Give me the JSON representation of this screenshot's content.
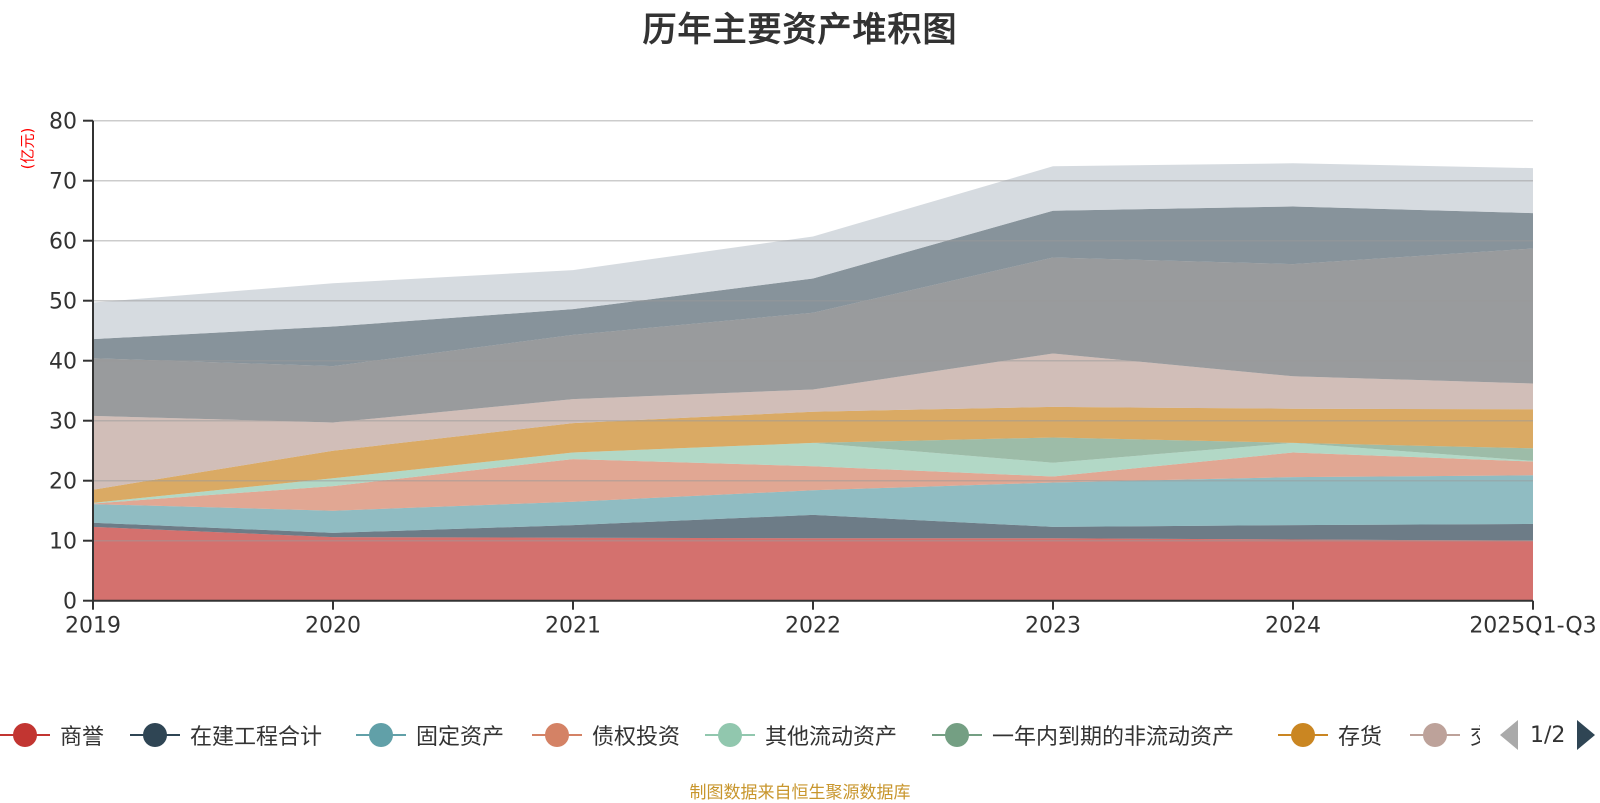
{
  "title": "历年主要资产堆积图",
  "y_unit": "(亿元)",
  "footer": "制图数据来自恒生聚源数据库",
  "legend_pager": {
    "text": "1/2",
    "prev_icon": "triangle-left-icon",
    "next_icon": "triangle-right-icon"
  },
  "chart_data": {
    "type": "area",
    "stacked": true,
    "title": "历年主要资产堆积图",
    "xlabel": "",
    "ylabel": "(亿元)",
    "ylim": [
      0,
      80
    ],
    "yticks": [
      "0",
      "10",
      "20",
      "30",
      "40",
      "50",
      "60",
      "70",
      "80"
    ],
    "grid": true,
    "legend_position": "bottom",
    "categories": [
      "2019",
      "2020",
      "2021",
      "2022",
      "2023",
      "2024",
      "2025Q1-Q3"
    ],
    "series": [
      {
        "name": "商誉",
        "color": "#c23531",
        "values": [
          12.3,
          10.6,
          10.5,
          10.4,
          10.4,
          10.2,
          10.0
        ]
      },
      {
        "name": "在建工程合计",
        "color": "#2f4554",
        "values": [
          0.7,
          0.7,
          2.1,
          3.9,
          1.9,
          2.4,
          2.8
        ]
      },
      {
        "name": "固定资产",
        "color": "#61a0a8",
        "values": [
          3.1,
          3.7,
          3.9,
          4.1,
          7.4,
          8.0,
          8.1
        ]
      },
      {
        "name": "债权投资",
        "color": "#d48265",
        "values": [
          0.1,
          4.1,
          7.1,
          4.0,
          1.0,
          4.1,
          2.3
        ]
      },
      {
        "name": "其他流动资产",
        "color": "#91c7ae",
        "values": [
          0.1,
          1.3,
          1.1,
          3.9,
          2.3,
          1.6,
          0.1
        ]
      },
      {
        "name": "一年内到期的非流动资产",
        "color": "#749f83",
        "values": [
          0.0,
          0.0,
          0.0,
          0.0,
          4.2,
          0.0,
          2.1
        ]
      },
      {
        "name": "存货",
        "color": "#ca8622",
        "values": [
          2.2,
          4.6,
          4.9,
          5.2,
          5.1,
          5.7,
          6.5
        ]
      },
      {
        "name": "交易性金融资产",
        "color": "#bda29a",
        "values": [
          12.3,
          4.7,
          4.0,
          3.7,
          8.9,
          5.4,
          4.3
        ]
      },
      {
        "name": "",
        "color": "#6e7074",
        "values": [
          9.6,
          9.4,
          10.7,
          12.8,
          16.0,
          18.7,
          22.5
        ]
      },
      {
        "name": "",
        "color": "#546570",
        "values": [
          3.2,
          6.6,
          4.3,
          5.7,
          7.8,
          9.6,
          5.9
        ]
      },
      {
        "name": "",
        "color": "#c4ccd3",
        "values": [
          6.1,
          7.2,
          6.5,
          7.0,
          7.4,
          7.2,
          7.5
        ]
      }
    ],
    "visible_legend": [
      "商誉",
      "在建工程合计",
      "固定资产",
      "债权投资",
      "其他流动资产",
      "一年内到期的非流动资产",
      "存货",
      "交"
    ]
  }
}
